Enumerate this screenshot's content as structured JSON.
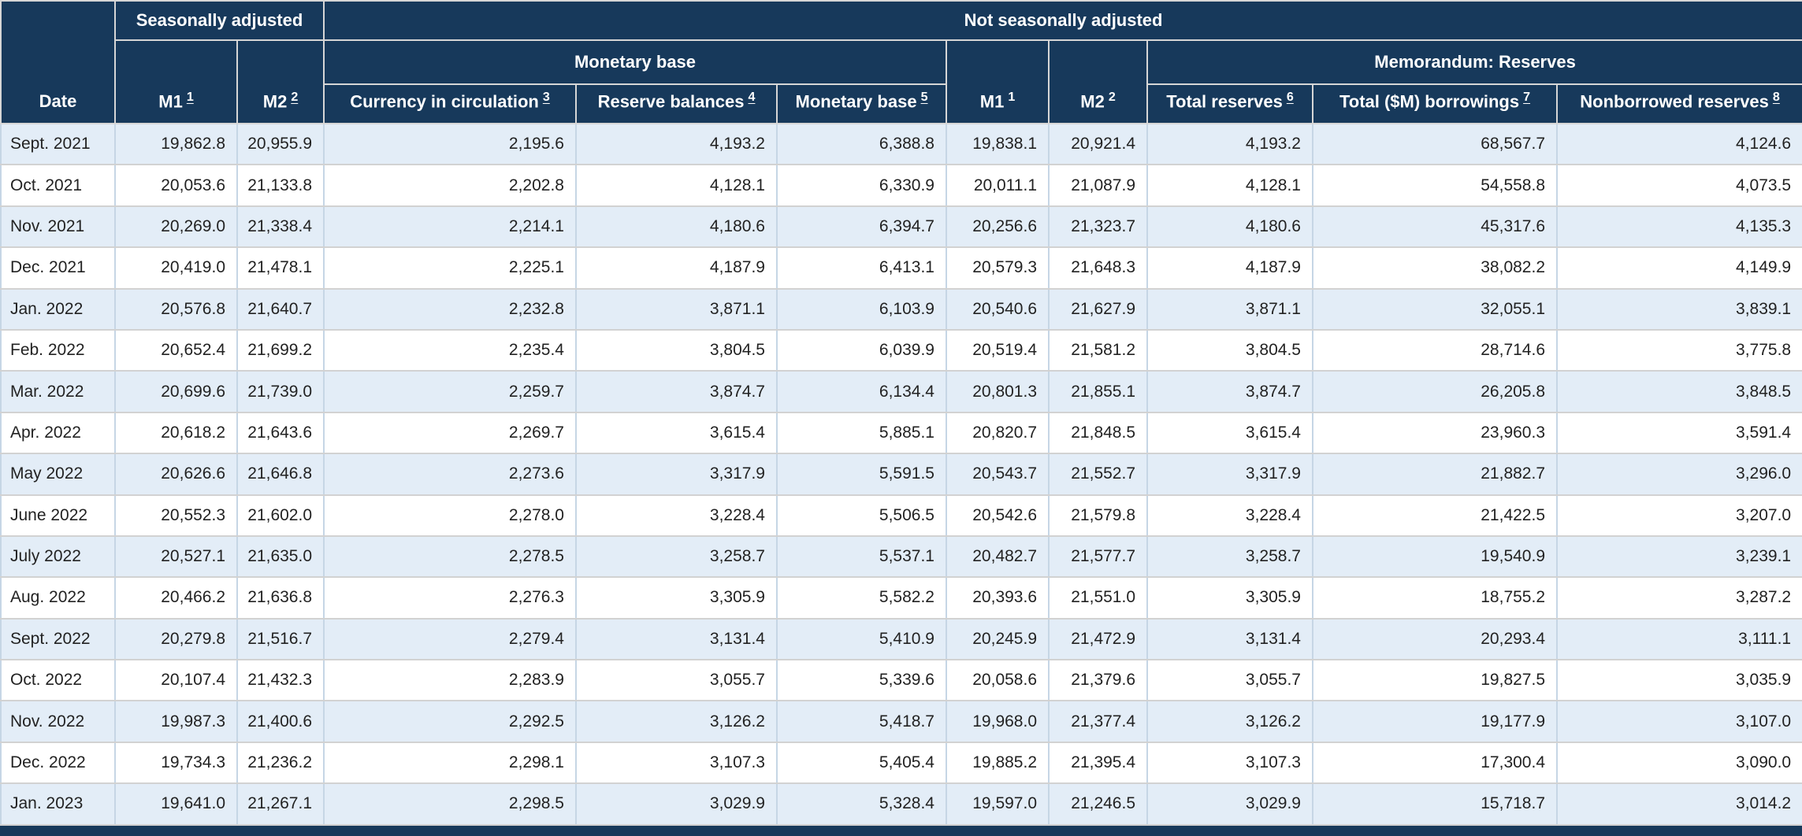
{
  "table": {
    "groups": {
      "seasonally": "Seasonally adjusted",
      "not_seasonally": "Not seasonally adjusted",
      "monetary_base_group": "Monetary base",
      "memorandum_group": "Memorandum: Reserves"
    },
    "columns": [
      {
        "key": "date",
        "label": "Date",
        "sup": "",
        "link": false
      },
      {
        "key": "m1_sa",
        "label": "M1",
        "sup": "1",
        "link": true
      },
      {
        "key": "m2_sa",
        "label": "M2",
        "sup": "2",
        "link": true
      },
      {
        "key": "currency_in_circulation",
        "label": "Currency in circulation",
        "sup": "3",
        "link": true
      },
      {
        "key": "reserve_balances",
        "label": "Reserve balances",
        "sup": "4",
        "link": true
      },
      {
        "key": "monetary_base",
        "label": "Monetary base",
        "sup": "5",
        "link": true
      },
      {
        "key": "m1_nsa",
        "label": "M1",
        "sup": "1",
        "link": false
      },
      {
        "key": "m2_nsa",
        "label": "M2",
        "sup": "2",
        "link": false
      },
      {
        "key": "total_reserves",
        "label": "Total reserves",
        "sup": "6",
        "link": true
      },
      {
        "key": "total_borrowings",
        "label": "Total ($M) borrowings",
        "sup": "7",
        "link": true
      },
      {
        "key": "nonborrowed_reserves",
        "label": "Nonborrowed reserves",
        "sup": "8",
        "link": true
      }
    ],
    "rows": [
      [
        "Sept. 2021",
        "19,862.8",
        "20,955.9",
        "2,195.6",
        "4,193.2",
        "6,388.8",
        "19,838.1",
        "20,921.4",
        "4,193.2",
        "68,567.7",
        "4,124.6"
      ],
      [
        "Oct. 2021",
        "20,053.6",
        "21,133.8",
        "2,202.8",
        "4,128.1",
        "6,330.9",
        "20,011.1",
        "21,087.9",
        "4,128.1",
        "54,558.8",
        "4,073.5"
      ],
      [
        "Nov. 2021",
        "20,269.0",
        "21,338.4",
        "2,214.1",
        "4,180.6",
        "6,394.7",
        "20,256.6",
        "21,323.7",
        "4,180.6",
        "45,317.6",
        "4,135.3"
      ],
      [
        "Dec. 2021",
        "20,419.0",
        "21,478.1",
        "2,225.1",
        "4,187.9",
        "6,413.1",
        "20,579.3",
        "21,648.3",
        "4,187.9",
        "38,082.2",
        "4,149.9"
      ],
      [
        "Jan. 2022",
        "20,576.8",
        "21,640.7",
        "2,232.8",
        "3,871.1",
        "6,103.9",
        "20,540.6",
        "21,627.9",
        "3,871.1",
        "32,055.1",
        "3,839.1"
      ],
      [
        "Feb. 2022",
        "20,652.4",
        "21,699.2",
        "2,235.4",
        "3,804.5",
        "6,039.9",
        "20,519.4",
        "21,581.2",
        "3,804.5",
        "28,714.6",
        "3,775.8"
      ],
      [
        "Mar. 2022",
        "20,699.6",
        "21,739.0",
        "2,259.7",
        "3,874.7",
        "6,134.4",
        "20,801.3",
        "21,855.1",
        "3,874.7",
        "26,205.8",
        "3,848.5"
      ],
      [
        "Apr. 2022",
        "20,618.2",
        "21,643.6",
        "2,269.7",
        "3,615.4",
        "5,885.1",
        "20,820.7",
        "21,848.5",
        "3,615.4",
        "23,960.3",
        "3,591.4"
      ],
      [
        "May 2022",
        "20,626.6",
        "21,646.8",
        "2,273.6",
        "3,317.9",
        "5,591.5",
        "20,543.7",
        "21,552.7",
        "3,317.9",
        "21,882.7",
        "3,296.0"
      ],
      [
        "June 2022",
        "20,552.3",
        "21,602.0",
        "2,278.0",
        "3,228.4",
        "5,506.5",
        "20,542.6",
        "21,579.8",
        "3,228.4",
        "21,422.5",
        "3,207.0"
      ],
      [
        "July 2022",
        "20,527.1",
        "21,635.0",
        "2,278.5",
        "3,258.7",
        "5,537.1",
        "20,482.7",
        "21,577.7",
        "3,258.7",
        "19,540.9",
        "3,239.1"
      ],
      [
        "Aug. 2022",
        "20,466.2",
        "21,636.8",
        "2,276.3",
        "3,305.9",
        "5,582.2",
        "20,393.6",
        "21,551.0",
        "3,305.9",
        "18,755.2",
        "3,287.2"
      ],
      [
        "Sept. 2022",
        "20,279.8",
        "21,516.7",
        "2,279.4",
        "3,131.4",
        "5,410.9",
        "20,245.9",
        "21,472.9",
        "3,131.4",
        "20,293.4",
        "3,111.1"
      ],
      [
        "Oct. 2022",
        "20,107.4",
        "21,432.3",
        "2,283.9",
        "3,055.7",
        "5,339.6",
        "20,058.6",
        "21,379.6",
        "3,055.7",
        "19,827.5",
        "3,035.9"
      ],
      [
        "Nov. 2022",
        "19,987.3",
        "21,400.6",
        "2,292.5",
        "3,126.2",
        "5,418.7",
        "19,968.0",
        "21,377.4",
        "3,126.2",
        "19,177.9",
        "3,107.0"
      ],
      [
        "Dec. 2022",
        "19,734.3",
        "21,236.2",
        "2,298.1",
        "3,107.3",
        "5,405.4",
        "19,885.2",
        "21,395.4",
        "3,107.3",
        "17,300.4",
        "3,090.0"
      ],
      [
        "Jan. 2023",
        "19,641.0",
        "21,267.1",
        "2,298.5",
        "3,029.9",
        "5,328.4",
        "19,597.0",
        "21,246.5",
        "3,029.9",
        "15,718.7",
        "3,014.2"
      ]
    ]
  }
}
